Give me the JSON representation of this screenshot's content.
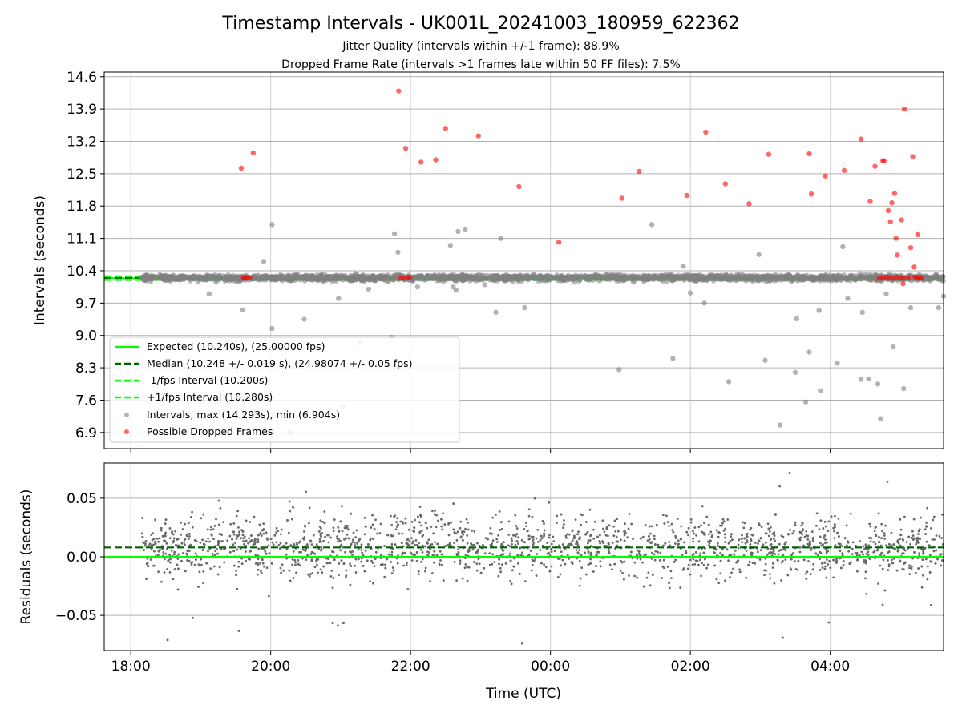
{
  "figure": {
    "title": "Timestamp Intervals - UK001L_20241003_180959_622362",
    "subtitle_jitter": "Jitter Quality (intervals within +/-1 frame): 88.9%",
    "subtitle_dropped": "Dropped Frame Rate (intervals >1 frames late within 50 FF files): 7.5%"
  },
  "colors": {
    "expected": "#00ff00",
    "median": "#006400",
    "bounds": "#00ff00",
    "intervals": "#808080",
    "dropped": "#ff0000",
    "residuals": "#696969",
    "grid": "#b0b0b0"
  },
  "chart_data": [
    {
      "type": "scatter",
      "panel": "intervals",
      "ylabel": "Intervals (seconds)",
      "xlabel": "",
      "x_unit": "hours since 18:00 UTC (2024-10-03)",
      "xlim": [
        -0.38,
        11.62
      ],
      "ylim": [
        6.55,
        14.7
      ],
      "x_ticks": [
        0,
        2,
        4,
        6,
        8,
        10
      ],
      "y_ticks": [
        6.9,
        7.6,
        8.3,
        9.0,
        9.7,
        10.4,
        11.1,
        11.8,
        12.5,
        13.2,
        13.9,
        14.6
      ],
      "y_tick_labels": [
        "6.9",
        "7.6",
        "8.3",
        "9.0",
        "9.7",
        "10.4",
        "11.1",
        "11.8",
        "12.5",
        "13.2",
        "13.9",
        "14.6"
      ],
      "grid": true,
      "legend_position": "lower-left",
      "legend": [
        {
          "label": "Expected (10.240s), (25.00000 fps)",
          "style": "solid",
          "color": "#00ff00"
        },
        {
          "label": "Median (10.248 +/- 0.019 s), (24.98074 +/- 0.05 fps)",
          "style": "dashed",
          "color": "#006400"
        },
        {
          "label": "-1/fps Interval (10.200s)",
          "style": "dashed",
          "color": "#00ff00"
        },
        {
          "label": "+1/fps Interval (10.280s)",
          "style": "dashed",
          "color": "#00ff00"
        },
        {
          "label": "Intervals, max (14.293s), min (6.904s)",
          "style": "marker",
          "color": "#808080"
        },
        {
          "label": "Possible Dropped Frames",
          "style": "marker",
          "color": "#ff0000"
        }
      ],
      "reference_lines": [
        {
          "name": "Expected",
          "y": 10.24,
          "style": "solid"
        },
        {
          "name": "Median",
          "y": 10.248,
          "style": "dashed"
        },
        {
          "name": "-1/fps",
          "y": 10.2,
          "style": "dashed"
        },
        {
          "name": "+1/fps",
          "y": 10.28,
          "style": "dashed"
        }
      ],
      "series": [
        {
          "name": "Intervals, max (14.293s), min (6.904s)",
          "kind": "outliers",
          "x": [
            1.6,
            2.02,
            2.48,
            1.9,
            2.97,
            3.4,
            3.77,
            3.82,
            4.1,
            4.68,
            4.79,
            4.61,
            5.22,
            5.63,
            6.98,
            7.75,
            8.55,
            8.98,
            8.2,
            8.0,
            9.28,
            9.07,
            9.5,
            9.52,
            9.7,
            9.65,
            9.84,
            10.1,
            10.25,
            10.44,
            10.46,
            10.55,
            10.68,
            10.72,
            10.9,
            11.05,
            11.15,
            11.55,
            11.62,
            2.02,
            3.03,
            3.73,
            3.26,
            4.78,
            4.57,
            5.06,
            5.29,
            7.45,
            7.9,
            2.28,
            1.22,
            1.12,
            4.65,
            9.86,
            10.8,
            10.18
          ],
          "y": [
            9.55,
            9.15,
            9.35,
            10.6,
            9.8,
            10.0,
            11.2,
            10.8,
            10.05,
            11.25,
            10.3,
            10.05,
            9.5,
            9.6,
            8.26,
            8.5,
            8.0,
            10.75,
            9.7,
            9.92,
            7.06,
            8.46,
            8.2,
            9.36,
            8.64,
            7.56,
            9.54,
            8.4,
            9.8,
            8.05,
            9.5,
            8.06,
            7.95,
            7.2,
            8.75,
            7.85,
            9.6,
            9.6,
            9.85,
            11.4,
            7.46,
            8.96,
            8.84,
            11.3,
            10.95,
            10.1,
            11.1,
            11.4,
            10.5,
            6.9,
            10.15,
            9.9,
            9.98,
            7.8,
            9.9,
            10.92
          ],
          "note": "dense band of ~2000 points between roughly 10.1 and 10.4 s, spanning 18:12–05:40"
        },
        {
          "name": "Possible Dropped Frames",
          "x": [
            1.58,
            1.75,
            3.83,
            3.93,
            4.15,
            4.36,
            4.5,
            4.97,
            5.55,
            6.12,
            7.02,
            7.27,
            7.95,
            8.22,
            8.5,
            8.84,
            9.12,
            9.7,
            9.73,
            9.93,
            10.2,
            10.44,
            10.57,
            10.64,
            10.75,
            10.77,
            10.83,
            10.86,
            10.88,
            10.92,
            10.94,
            10.96,
            11.02,
            11.04,
            11.06,
            11.15,
            11.2,
            11.25,
            11.31,
            11.18,
            11.21,
            1.61,
            1.63,
            1.67,
            1.7,
            3.86,
            3.9,
            3.96,
            3.99,
            10.7,
            10.75,
            10.8,
            10.85,
            10.9,
            10.95,
            11.0,
            11.05,
            11.12,
            11.24,
            11.27
          ],
          "y": [
            12.62,
            12.95,
            14.29,
            13.05,
            12.75,
            12.8,
            13.48,
            13.32,
            12.22,
            11.02,
            11.97,
            12.55,
            12.03,
            13.4,
            12.28,
            11.85,
            12.92,
            12.93,
            12.06,
            12.45,
            12.57,
            13.25,
            11.9,
            12.66,
            12.78,
            12.78,
            11.7,
            11.46,
            11.87,
            12.07,
            11.1,
            10.74,
            11.5,
            10.12,
            13.9,
            10.9,
            10.48,
            11.18,
            10.25,
            12.87,
            10.27,
            10.25,
            10.24,
            10.26,
            10.25,
            10.25,
            10.24,
            10.26,
            10.25,
            10.24,
            10.25,
            10.26,
            10.25,
            10.24,
            10.26,
            10.25,
            10.24,
            10.25,
            10.25,
            10.24
          ]
        }
      ]
    },
    {
      "type": "scatter",
      "panel": "residuals",
      "ylabel": "Residuals (seconds)",
      "xlabel": "Time (UTC)",
      "x_unit": "hours since 18:00 UTC (2024-10-03)",
      "xlim": [
        -0.38,
        11.62
      ],
      "ylim": [
        -0.08,
        0.08
      ],
      "x_ticks": [
        0,
        2,
        4,
        6,
        8,
        10
      ],
      "x_tick_labels": [
        "18:00",
        "20:00",
        "22:00",
        "00:00",
        "02:00",
        "04:00"
      ],
      "y_ticks": [
        -0.05,
        0.0,
        0.05
      ],
      "y_tick_labels": [
        "−0.05",
        "0.00",
        "0.05"
      ],
      "grid": true,
      "reference_lines": [
        {
          "name": "Zero",
          "y": 0.0,
          "style": "solid"
        },
        {
          "name": "Median offset",
          "y": 0.008,
          "style": "dashed"
        }
      ],
      "series": [
        {
          "name": "Residuals",
          "kind": "dense",
          "x_range": [
            0.16,
            11.62
          ],
          "mean": 0.009,
          "std": 0.019,
          "note": "about 2000 small points, mostly within ±0.04 s, occasional points out to ±0.08 s"
        }
      ]
    }
  ]
}
